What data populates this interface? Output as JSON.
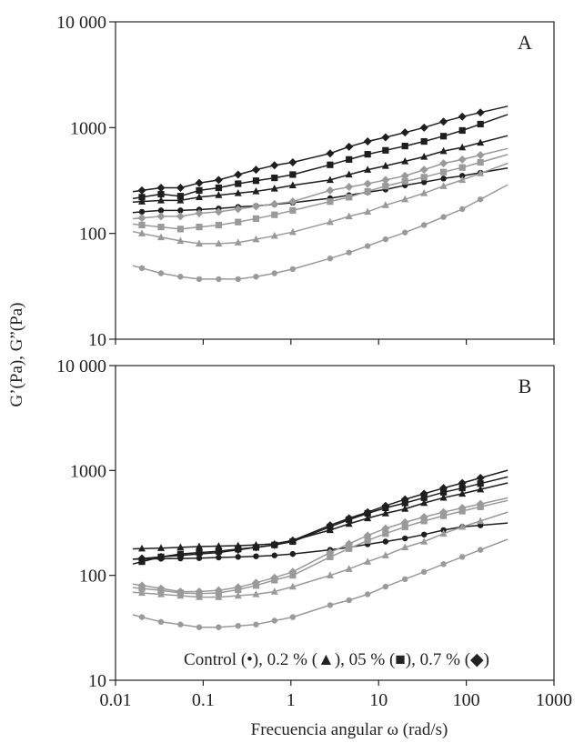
{
  "chart_data": {
    "type": "line",
    "x_scale": "log",
    "y_scale": "log",
    "xlabel": "Frecuencia angular ω (rad/s)",
    "ylabel": "G’(Pa), G”(Pa)",
    "xlim": [
      0.01,
      1000
    ],
    "ylim": [
      10,
      10000
    ],
    "x_ticks": [
      "0.01",
      "0.1",
      "1",
      "10",
      "100",
      "1000"
    ],
    "y_ticks": [
      "10",
      "100",
      "1000",
      "10 000"
    ],
    "legend": {
      "text": "Control (•), 0.2 % (▲), 05 % (■), 0.7 % (◆)",
      "entries": [
        {
          "label": "Control",
          "marker": "circle"
        },
        {
          "label": "0.2 %",
          "marker": "triangle"
        },
        {
          "label": "05 %",
          "marker": "square"
        },
        {
          "label": "0.7 %",
          "marker": "diamond"
        }
      ]
    },
    "x": [
      0.02,
      0.033,
      0.055,
      0.09,
      0.15,
      0.25,
      0.4,
      0.65,
      1.05,
      2.8,
      4.6,
      7.5,
      12,
      20,
      33,
      55,
      90,
      145
    ],
    "series_colors": {
      "G_prime": "#1e1e1e",
      "G_double_prime": "#9a9a9a"
    },
    "panels": [
      {
        "label": "A",
        "series": [
          {
            "name": "0.7 % G'",
            "marker": "diamond",
            "modulus": "G_prime",
            "values": [
              255,
              270,
              270,
              300,
              320,
              360,
              400,
              440,
              470,
              570,
              660,
              740,
              810,
              900,
              1000,
              1140,
              1270,
              1390
            ]
          },
          {
            "name": "05 % G'",
            "marker": "square",
            "modulus": "G_prime",
            "values": [
              220,
              235,
              225,
              255,
              270,
              295,
              315,
              335,
              360,
              445,
              500,
              560,
              610,
              670,
              740,
              830,
              940,
              1080
            ]
          },
          {
            "name": "0.2 % G'",
            "marker": "triangle",
            "modulus": "G_prime",
            "values": [
              200,
              205,
              205,
              220,
              230,
              240,
              250,
              265,
              285,
              320,
              360,
              400,
              435,
              480,
              530,
              600,
              650,
              720
            ]
          },
          {
            "name": "Control G'",
            "marker": "circle",
            "modulus": "G_prime",
            "values": [
              160,
              165,
              165,
              168,
              172,
              178,
              182,
              188,
              195,
              215,
              230,
              245,
              260,
              285,
              305,
              330,
              350,
              375
            ]
          },
          {
            "name": "0.7 % G\"",
            "marker": "diamond",
            "modulus": "G_double_prime",
            "values": [
              140,
              145,
              145,
              155,
              160,
              170,
              180,
              190,
              200,
              255,
              275,
              295,
              320,
              350,
              400,
              460,
              500,
              550
            ]
          },
          {
            "name": "05 % G\"",
            "marker": "square",
            "modulus": "G_double_prime",
            "values": [
              120,
              115,
              110,
              115,
              120,
              128,
              138,
              150,
              165,
              200,
              220,
              250,
              280,
              310,
              340,
              380,
              420,
              470
            ]
          },
          {
            "name": "0.2 % G\"",
            "marker": "triangle",
            "modulus": "G_double_prime",
            "values": [
              100,
              92,
              85,
              80,
              80,
              82,
              88,
              95,
              103,
              128,
              145,
              160,
              185,
              210,
              240,
              280,
              320,
              370
            ]
          },
          {
            "name": "Control G\"",
            "marker": "circle",
            "modulus": "G_double_prime",
            "values": [
              47,
              42,
              39,
              37,
              37,
              37,
              39,
              42,
              46,
              58,
              66,
              76,
              88,
              102,
              120,
              143,
              170,
              210
            ]
          }
        ]
      },
      {
        "label": "B",
        "series": [
          {
            "name": "0.2 % G'",
            "marker": "triangle",
            "modulus": "G_prime",
            "values": [
              180,
              182,
              185,
              188,
              190,
              192,
              195,
              200,
              215,
              270,
              310,
              350,
              390,
              430,
              490,
              550,
              600,
              660
            ]
          },
          {
            "name": "05 % G'",
            "marker": "square",
            "modulus": "G_prime",
            "values": [
              135,
              150,
              160,
              165,
              170,
              178,
              185,
              195,
              210,
              290,
              340,
              390,
              440,
              490,
              550,
              620,
              680,
              750
            ]
          },
          {
            "name": "0.7 % G'",
            "marker": "diamond",
            "modulus": "G_prime",
            "values": [
              145,
              150,
              155,
              160,
              165,
              175,
              185,
              195,
              215,
              300,
              350,
              400,
              460,
              530,
              600,
              680,
              760,
              850
            ]
          },
          {
            "name": "Control G'",
            "marker": "circle",
            "modulus": "G_prime",
            "values": [
              143,
              144,
              145,
              146,
              148,
              150,
              152,
              155,
              160,
              175,
              185,
              198,
              210,
              225,
              245,
              270,
              290,
              300
            ]
          },
          {
            "name": "0.7 % G\"",
            "marker": "diamond",
            "modulus": "G_double_prime",
            "values": [
              80,
              75,
              70,
              70,
              72,
              77,
              85,
              95,
              108,
              165,
              200,
              240,
              280,
              320,
              360,
              400,
              440,
              480
            ]
          },
          {
            "name": "05 % G\"",
            "marker": "square",
            "modulus": "G_double_prime",
            "values": [
              75,
              72,
              68,
              67,
              68,
              73,
              80,
              90,
              100,
              150,
              180,
              215,
              250,
              290,
              330,
              370,
              410,
              450
            ]
          },
          {
            "name": "0.2 % G\"",
            "marker": "triangle",
            "modulus": "G_double_prime",
            "values": [
              68,
              66,
              64,
              62,
              62,
              64,
              66,
              70,
              78,
              100,
              115,
              135,
              155,
              185,
              210,
              250,
              290,
              330
            ]
          },
          {
            "name": "Control G\"",
            "marker": "circle",
            "modulus": "G_double_prime",
            "values": [
              40,
              36,
              34,
              32,
              32,
              33,
              34,
              37,
              40,
              52,
              58,
              66,
              78,
              92,
              108,
              128,
              150,
              175
            ]
          }
        ]
      }
    ]
  }
}
